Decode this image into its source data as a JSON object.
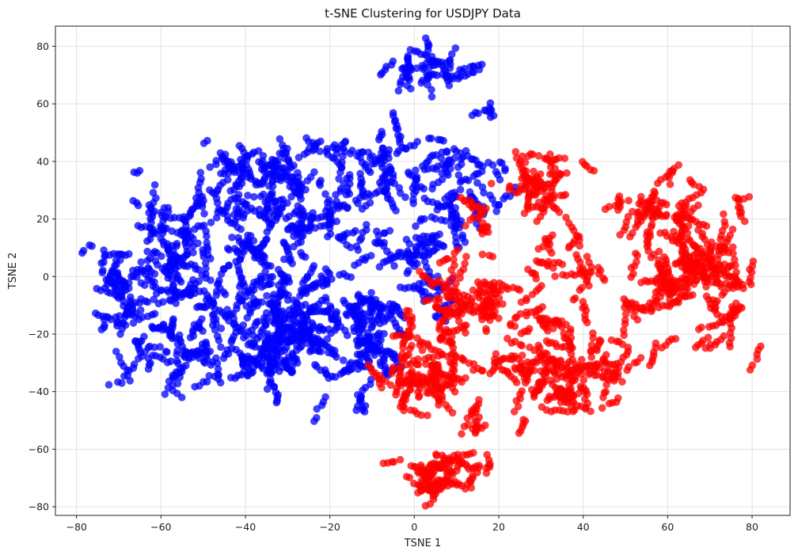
{
  "chart_data": {
    "type": "scatter",
    "title": "t-SNE Clustering for USDJPY Data",
    "xlabel": "TSNE 1",
    "ylabel": "TSNE 2",
    "xlim": [
      -85,
      89
    ],
    "ylim": [
      -83,
      87
    ],
    "xticks": [
      -80,
      -60,
      -40,
      -20,
      0,
      20,
      40,
      60,
      80
    ],
    "yticks": [
      -80,
      -60,
      -40,
      -20,
      0,
      20,
      40,
      60,
      80
    ],
    "grid": true,
    "marker_opacity": 0.75,
    "point_count_approx": 2500,
    "series": [
      {
        "color": "#0000ff",
        "regions": [
          {
            "cx": 1,
            "cy": 73,
            "sx": 5,
            "sy": 4,
            "n": 110
          },
          {
            "cx": 17,
            "cy": 58,
            "sx": 2,
            "sy": 1.5,
            "n": 12
          },
          {
            "cx": -70,
            "cy": -2,
            "sx": 4,
            "sy": 7,
            "n": 120
          },
          {
            "cx": -58,
            "cy": 14,
            "sx": 6,
            "sy": 12,
            "n": 160
          },
          {
            "cx": -58,
            "cy": -20,
            "sx": 7,
            "sy": 11,
            "n": 160
          },
          {
            "cx": -40,
            "cy": 30,
            "sx": 8,
            "sy": 10,
            "n": 200
          },
          {
            "cx": -40,
            "cy": -5,
            "sx": 9,
            "sy": 13,
            "n": 220
          },
          {
            "cx": -28,
            "cy": -15,
            "sx": 8,
            "sy": 10,
            "n": 260
          },
          {
            "cx": -40,
            "cy": -28,
            "sx": 8,
            "sy": 6,
            "n": 150
          },
          {
            "cx": -28,
            "cy": 15,
            "sx": 8,
            "sy": 14,
            "n": 220
          },
          {
            "cx": -14,
            "cy": 28,
            "sx": 6,
            "sy": 12,
            "n": 150
          },
          {
            "cx": -14,
            "cy": -30,
            "sx": 6,
            "sy": 8,
            "n": 120
          },
          {
            "cx": -11,
            "cy": -11,
            "sx": 3,
            "sy": 4,
            "n": 80
          },
          {
            "cx": 2,
            "cy": 8,
            "sx": 4,
            "sy": 10,
            "n": 130
          },
          {
            "cx": 4,
            "cy": 40,
            "sx": 12,
            "sy": 5,
            "n": 140
          },
          {
            "cx": 8,
            "cy": 25,
            "sx": 5,
            "sy": 5,
            "n": 70
          },
          {
            "cx": -4,
            "cy": -22,
            "sx": 3,
            "sy": 8,
            "n": 40
          }
        ]
      },
      {
        "color": "#ff0000",
        "regions": [
          {
            "cx": 8,
            "cy": -67,
            "sx": 5,
            "sy": 5,
            "n": 170
          },
          {
            "cx": 2,
            "cy": -35,
            "sx": 6,
            "sy": 10,
            "n": 220
          },
          {
            "cx": 8,
            "cy": -8,
            "sx": 4,
            "sy": 8,
            "n": 120
          },
          {
            "cx": 18,
            "cy": -12,
            "sx": 4,
            "sy": 12,
            "n": 110
          },
          {
            "cx": 27,
            "cy": -25,
            "sx": 5,
            "sy": 12,
            "n": 150
          },
          {
            "cx": 38,
            "cy": -33,
            "sx": 5,
            "sy": 8,
            "n": 130
          },
          {
            "cx": 46,
            "cy": -33,
            "sx": 5,
            "sy": 8,
            "n": 80
          },
          {
            "cx": 28,
            "cy": 32,
            "sx": 7,
            "sy": 8,
            "n": 130
          },
          {
            "cx": 37,
            "cy": 5,
            "sx": 6,
            "sy": 12,
            "n": 80
          },
          {
            "cx": 56,
            "cy": 5,
            "sx": 4,
            "sy": 18,
            "n": 110
          },
          {
            "cx": 64,
            "cy": 8,
            "sx": 5,
            "sy": 18,
            "n": 240
          },
          {
            "cx": 73,
            "cy": -5,
            "sx": 5,
            "sy": 14,
            "n": 180
          },
          {
            "cx": 52,
            "cy": 25,
            "sx": 3,
            "sy": 4,
            "n": 35
          },
          {
            "cx": 15,
            "cy": 20,
            "sx": 2,
            "sy": 3,
            "n": 30
          },
          {
            "cx": 14,
            "cy": -50,
            "sx": 2,
            "sy": 5,
            "n": 25
          }
        ]
      }
    ]
  }
}
